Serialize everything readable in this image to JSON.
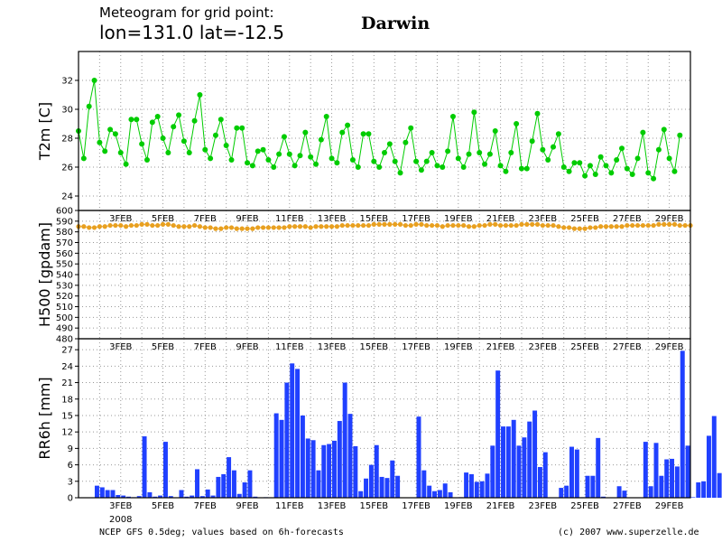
{
  "header": {
    "subtitle": "Meteogram for grid point:",
    "coords": "lon=131.0 lat=-12.5",
    "location": "Darwin"
  },
  "footer": {
    "left": "NCEP GFS 0.5deg; values based on 6h-forecasts",
    "right": "(c) 2007 www.superzelle.de"
  },
  "x_axis": {
    "days": 29,
    "labels": [
      {
        "day": 2,
        "text": "3FEB"
      },
      {
        "day": 4,
        "text": "5FEB"
      },
      {
        "day": 6,
        "text": "7FEB"
      },
      {
        "day": 8,
        "text": "9FEB"
      },
      {
        "day": 10,
        "text": "11FEB"
      },
      {
        "day": 12,
        "text": "13FEB"
      },
      {
        "day": 14,
        "text": "15FEB"
      },
      {
        "day": 16,
        "text": "17FEB"
      },
      {
        "day": 18,
        "text": "19FEB"
      },
      {
        "day": 20,
        "text": "21FEB"
      },
      {
        "day": 22,
        "text": "23FEB"
      },
      {
        "day": 24,
        "text": "25FEB"
      },
      {
        "day": 26,
        "text": "27FEB"
      },
      {
        "day": 28,
        "text": "29FEB"
      }
    ],
    "year_label": "2008"
  },
  "chart_data": [
    {
      "type": "line",
      "ylabel": "T2m [C]",
      "ylim": [
        23,
        34
      ],
      "yticks": [
        24,
        26,
        28,
        30,
        32
      ],
      "color": "#00cc00",
      "values": [
        28.5,
        26.6,
        30.2,
        32.0,
        27.7,
        27.1,
        28.6,
        28.3,
        27.0,
        26.2,
        29.3,
        29.3,
        27.6,
        26.5,
        29.1,
        29.5,
        28.0,
        27.0,
        28.8,
        29.6,
        27.8,
        27.0,
        29.2,
        31.0,
        27.2,
        26.6,
        28.2,
        29.3,
        27.5,
        26.5,
        28.7,
        28.7,
        26.3,
        26.1,
        27.1,
        27.2,
        26.5,
        26.0,
        26.9,
        28.1,
        26.9,
        26.1,
        26.8,
        28.4,
        26.7,
        26.2,
        27.9,
        29.5,
        26.6,
        26.3,
        28.4,
        28.9,
        26.5,
        26.0,
        28.3,
        28.3,
        26.4,
        26.0,
        27.0,
        27.6,
        26.4,
        25.6,
        27.7,
        28.7,
        26.4,
        25.8,
        26.4,
        27.0,
        26.1,
        26.0,
        27.1,
        29.5,
        26.6,
        26.0,
        26.9,
        29.8,
        27.0,
        26.2,
        26.9,
        28.5,
        26.1,
        25.7,
        27.0,
        29.0,
        25.9,
        25.9,
        27.8,
        29.7,
        27.2,
        26.5,
        27.4,
        28.3,
        26.0,
        25.7,
        26.3,
        26.3,
        25.4,
        26.1,
        25.5,
        26.7,
        26.1,
        25.6,
        26.5,
        27.3,
        25.9,
        25.5,
        26.6,
        28.4,
        25.6,
        25.2,
        27.2,
        28.6,
        26.6,
        25.7,
        28.2
      ]
    },
    {
      "type": "line",
      "ylabel": "H500 [gpdam]",
      "ylim": [
        480,
        600
      ],
      "yticks": [
        480,
        490,
        500,
        510,
        520,
        530,
        540,
        550,
        560,
        570,
        580,
        590,
        600
      ],
      "color": "#e8a020",
      "values": [
        585,
        585,
        584,
        584,
        585,
        585,
        586,
        586,
        586,
        585,
        586,
        586,
        587,
        587,
        586,
        586,
        587,
        587,
        586,
        585,
        585,
        585,
        586,
        585,
        584,
        584,
        583,
        583,
        584,
        584,
        583,
        583,
        583,
        583,
        584,
        584,
        584,
        584,
        584,
        584,
        585,
        585,
        585,
        585,
        584,
        585,
        585,
        585,
        585,
        585,
        586,
        586,
        586,
        586,
        586,
        586,
        587,
        587,
        587,
        587,
        587,
        587,
        586,
        586,
        587,
        587,
        586,
        586,
        586,
        585,
        586,
        586,
        586,
        586,
        585,
        585,
        586,
        586,
        587,
        587,
        586,
        586,
        586,
        586,
        587,
        587,
        587,
        587,
        586,
        586,
        586,
        585,
        584,
        584,
        583,
        583,
        583,
        584,
        584,
        585,
        585,
        585,
        585,
        585,
        586,
        586,
        586,
        586,
        586,
        586,
        587,
        587,
        587,
        587,
        586,
        586,
        586
      ]
    },
    {
      "type": "bar",
      "ylabel": "RR6h [mm]",
      "ylim": [
        0,
        29
      ],
      "yticks": [
        0,
        3,
        6,
        9,
        12,
        15,
        18,
        21,
        24,
        27
      ],
      "color": "#2040ff",
      "values": [
        0,
        0,
        0,
        2.2,
        1.9,
        1.4,
        1.4,
        0.5,
        0.4,
        0.2,
        0.1,
        0.3,
        11.2,
        1.0,
        0.2,
        0.4,
        10.2,
        0.3,
        0,
        1.4,
        0.2,
        0.4,
        5.2,
        0.3,
        1.5,
        0.4,
        3.8,
        4.3,
        7.4,
        5.0,
        0.7,
        2.8,
        5.0,
        0.2,
        0,
        0.1,
        0,
        15.4,
        14.2,
        21.0,
        24.5,
        23.5,
        15.0,
        10.8,
        10.5,
        5.0,
        9.6,
        9.8,
        10.4,
        14.0,
        21.0,
        15.3,
        9.4,
        1.2,
        3.5,
        6.0,
        9.6,
        3.8,
        3.6,
        6.8,
        4.0,
        0,
        0,
        0,
        14.8,
        5.0,
        2.2,
        1.2,
        1.4,
        2.6,
        1.0,
        0,
        0.1,
        4.6,
        4.3,
        2.9,
        3.0,
        4.4,
        9.5,
        23.2,
        13.0,
        13.0,
        14.2,
        9.5,
        11.0,
        13.9,
        15.9,
        5.6,
        8.3,
        0,
        0,
        1.8,
        2.2,
        9.3,
        8.8,
        0.1,
        4.0,
        4.0,
        10.9,
        0.2,
        0,
        0,
        2.1,
        1.3,
        0,
        0,
        0,
        10.2,
        2.1,
        10.0,
        4.0,
        7.0,
        7.1,
        5.7,
        26.8,
        9.5,
        0.1,
        2.8,
        3.0,
        11.3,
        14.9,
        4.5,
        4.3,
        8.3,
        11.3,
        10.8,
        8.5,
        0.3,
        1.8,
        6.0,
        1.1,
        0,
        0,
        5.6
      ]
    }
  ]
}
